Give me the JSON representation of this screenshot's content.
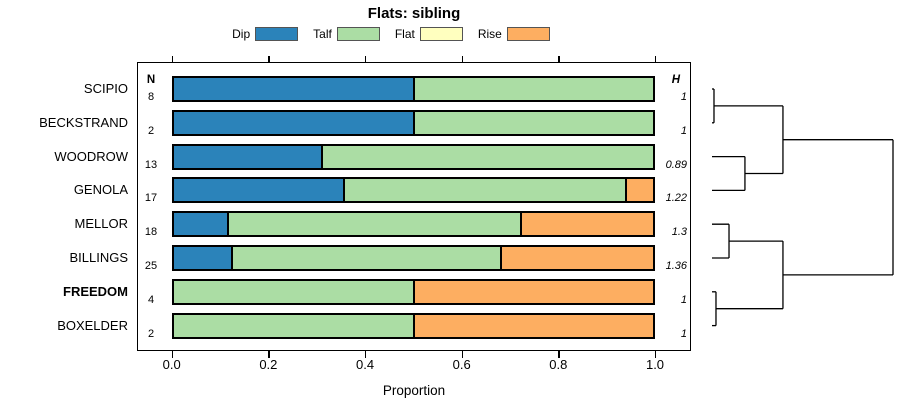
{
  "chart_data": {
    "type": "bar",
    "orientation": "horizontal-stacked",
    "title": "Flats: sibling",
    "xlabel": "Proportion",
    "xlim": [
      0,
      1
    ],
    "x_ticks": [
      0.0,
      0.2,
      0.4,
      0.6,
      0.8,
      1.0
    ],
    "x_tick_labels": [
      "0.0",
      "0.2",
      "0.4",
      "0.6",
      "0.8",
      "1.0"
    ],
    "grid": false,
    "legend_position": "top",
    "categories": [
      "Dip",
      "Talf",
      "Flat",
      "Rise"
    ],
    "colors": [
      "#2B83BA",
      "#ABDDA4",
      "#FFFFBF",
      "#FDAE61"
    ],
    "n_header": "N",
    "h_header": "H",
    "rows": [
      {
        "label": "SCIPIO",
        "N": "8",
        "values": [
          0.5,
          0.5,
          0,
          0
        ],
        "H": "1",
        "bold": false
      },
      {
        "label": "BECKSTRAND",
        "N": "2",
        "values": [
          0.5,
          0.5,
          0,
          0
        ],
        "H": "1",
        "bold": false
      },
      {
        "label": "WOODROW",
        "N": "13",
        "values": [
          0.308,
          0.692,
          0,
          0
        ],
        "H": "0.89",
        "bold": false
      },
      {
        "label": "GENOLA",
        "N": "17",
        "values": [
          0.353,
          0.588,
          0,
          0.059
        ],
        "H": "1.22",
        "bold": false
      },
      {
        "label": "MELLOR",
        "N": "18",
        "values": [
          0.111,
          0.611,
          0,
          0.278
        ],
        "H": "1.3",
        "bold": false
      },
      {
        "label": "BILLINGS",
        "N": "25",
        "values": [
          0.12,
          0.56,
          0,
          0.32
        ],
        "H": "1.36",
        "bold": false
      },
      {
        "label": "FREEDOM",
        "N": "4",
        "values": [
          0,
          0.5,
          0,
          0.5
        ],
        "H": "1",
        "bold": true
      },
      {
        "label": "BOXELDER",
        "N": "2",
        "values": [
          0,
          0.5,
          0,
          0.5
        ],
        "H": "1",
        "bold": false
      }
    ],
    "dendrogram": {
      "tree": {
        "h": 1.0,
        "children": [
          {
            "h": 0.392,
            "children": [
              {
                "h": 0.011,
                "children": [
                  {
                    "leaf": "SCIPIO"
                  },
                  {
                    "leaf": "BECKSTRAND"
                  }
                ]
              },
              {
                "h": 0.182,
                "children": [
                  {
                    "leaf": "WOODROW"
                  },
                  {
                    "leaf": "GENOLA"
                  }
                ]
              }
            ]
          },
          {
            "h": 0.392,
            "children": [
              {
                "h": 0.094,
                "children": [
                  {
                    "leaf": "MELLOR"
                  },
                  {
                    "leaf": "BILLINGS"
                  }
                ]
              },
              {
                "h": 0.022,
                "children": [
                  {
                    "leaf": "FREEDOM"
                  },
                  {
                    "leaf": "BOXELDER"
                  }
                ]
              }
            ]
          }
        ]
      }
    }
  }
}
